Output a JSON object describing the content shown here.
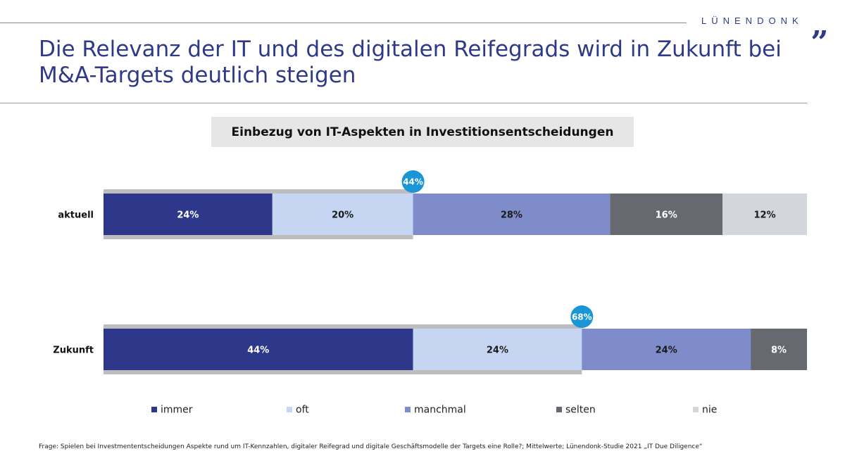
{
  "header": {
    "brand": "LÜNENDONK",
    "brand_mark": "„",
    "title": "Die Relevanz der IT und des digitalen Reifegrads wird in Zukunft bei M&A-Targets deutlich steigen"
  },
  "chart_data": {
    "type": "bar",
    "orientation": "horizontal",
    "stacked": true,
    "title": "Einbezug von IT-Aspekten in Investitionsentscheidungen",
    "categories": [
      "aktuell",
      "Zukunft"
    ],
    "series": [
      {
        "name": "immer",
        "values": [
          24,
          44
        ],
        "labels": [
          "24%",
          "44%"
        ],
        "color": "#2e388a",
        "label_color": "#ffffff"
      },
      {
        "name": "oft",
        "values": [
          20,
          24
        ],
        "labels": [
          "20%",
          "24%"
        ],
        "color": "#c6d5f2",
        "label_color": "#1a1a1a"
      },
      {
        "name": "manchmal",
        "values": [
          28,
          24
        ],
        "labels": [
          "28%",
          "24%"
        ],
        "color": "#7e8cca",
        "label_color": "#1a1a1a"
      },
      {
        "name": "selten",
        "values": [
          16,
          8
        ],
        "labels": [
          "16%",
          "8%"
        ],
        "color": "#666a70",
        "label_color": "#ffffff"
      },
      {
        "name": "nie",
        "values": [
          12,
          0
        ],
        "labels": [
          "12%",
          ""
        ],
        "color": "#d3d7dc",
        "label_color": "#1a1a1a"
      }
    ],
    "highlights": [
      {
        "value": 44,
        "label": "44%"
      },
      {
        "value": 68,
        "label": "68%"
      }
    ],
    "highlight_color": "#1a96d6",
    "bracket_color": "#bdbdbd",
    "xlim": [
      0,
      100
    ],
    "legend_position": "bottom"
  },
  "footnote": "Frage: Spielen bei Investmententscheidungen Aspekte rund um IT-Kennzahlen, digitaler Reifegrad und digitale Geschäftsmodelle der Targets eine Rolle?; Mittelwerte; Lünendonk-Studie 2021 „IT Due Diligence“"
}
